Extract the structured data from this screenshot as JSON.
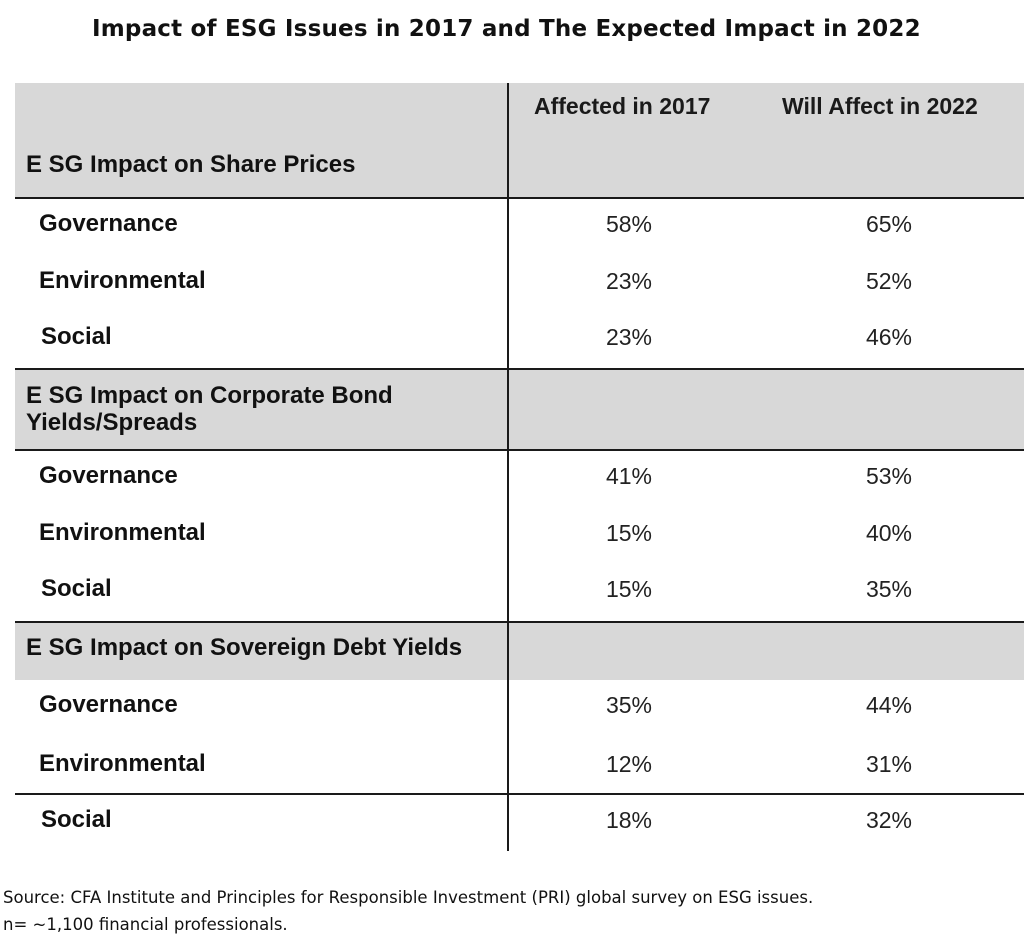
{
  "chart_data": {
    "type": "table",
    "title": "Impact of ESG Issues in 2017 and The Expected Impact in 2022",
    "columns": [
      "",
      "Affected in 2017",
      "Will Affect in 2022"
    ],
    "sections": [
      {
        "label": "ESG Impact on Share Prices",
        "label_lines": [
          "E SG Impact on Share Prices"
        ],
        "rows": [
          {
            "label": "Governance",
            "values": [
              "58%",
              "65%"
            ]
          },
          {
            "label": "Environmental",
            "values": [
              "23%",
              "52%"
            ]
          },
          {
            "label": "Social",
            "values": [
              "23%",
              "46%"
            ]
          }
        ]
      },
      {
        "label": "ESG Impact on Corporate Bond Yields/Spreads",
        "label_lines": [
          "E SG Impact on Corporate Bond",
          "Yields/Spreads"
        ],
        "rows": [
          {
            "label": "Governance",
            "values": [
              "41%",
              "53%"
            ]
          },
          {
            "label": "Environmental",
            "values": [
              "15%",
              "40%"
            ]
          },
          {
            "label": "Social",
            "values": [
              "15%",
              "35%"
            ]
          }
        ]
      },
      {
        "label": "ESG Impact on Sovereign Debt Yields",
        "label_lines": [
          "E SG Impact on Sovereign Debt Yields"
        ],
        "rows": [
          {
            "label": "Governance",
            "values": [
              "35%",
              "44%"
            ]
          },
          {
            "label": "Environmental",
            "values": [
              "12%",
              "31%"
            ]
          },
          {
            "label": "Social",
            "values": [
              "18%",
              "32%"
            ]
          }
        ]
      }
    ],
    "source_lines": [
      "Source: CFA Institute and Principles for Responsible Investment (PRI) global survey on ESG issues.",
      "n= ~1,100 financial professionals."
    ]
  },
  "colors": {
    "header_fill": "#d8d8d8",
    "rule": "#1a1a1a",
    "text": "#111111"
  }
}
